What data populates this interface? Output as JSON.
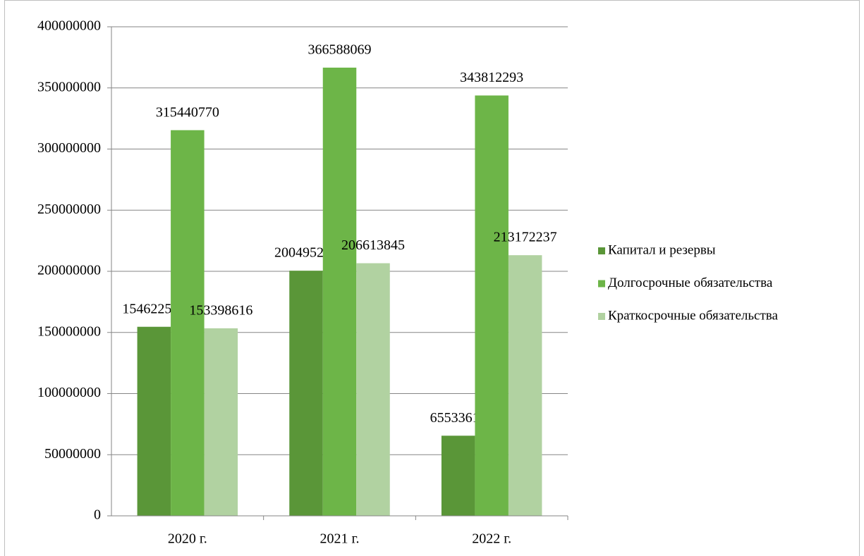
{
  "chart_data": {
    "type": "bar",
    "categories": [
      "2020 г.",
      "2021 г.",
      "2022 г."
    ],
    "series": [
      {
        "name": "Капитал и резервы",
        "color": "#5a9638",
        "values": [
          154622557,
          200495286,
          65533617
        ]
      },
      {
        "name": "Долгосрочные обязательства",
        "color": "#6db548",
        "values": [
          315440770,
          366588069,
          343812293
        ]
      },
      {
        "name": "Краткосрочные обязательства",
        "color": "#b1d2a1",
        "values": [
          153398616,
          206613845,
          213172237
        ]
      }
    ],
    "ylim": [
      0,
      400000000
    ],
    "yticks": [
      0,
      50000000,
      100000000,
      150000000,
      200000000,
      250000000,
      300000000,
      350000000,
      400000000
    ],
    "grid": true,
    "legend": "right"
  }
}
